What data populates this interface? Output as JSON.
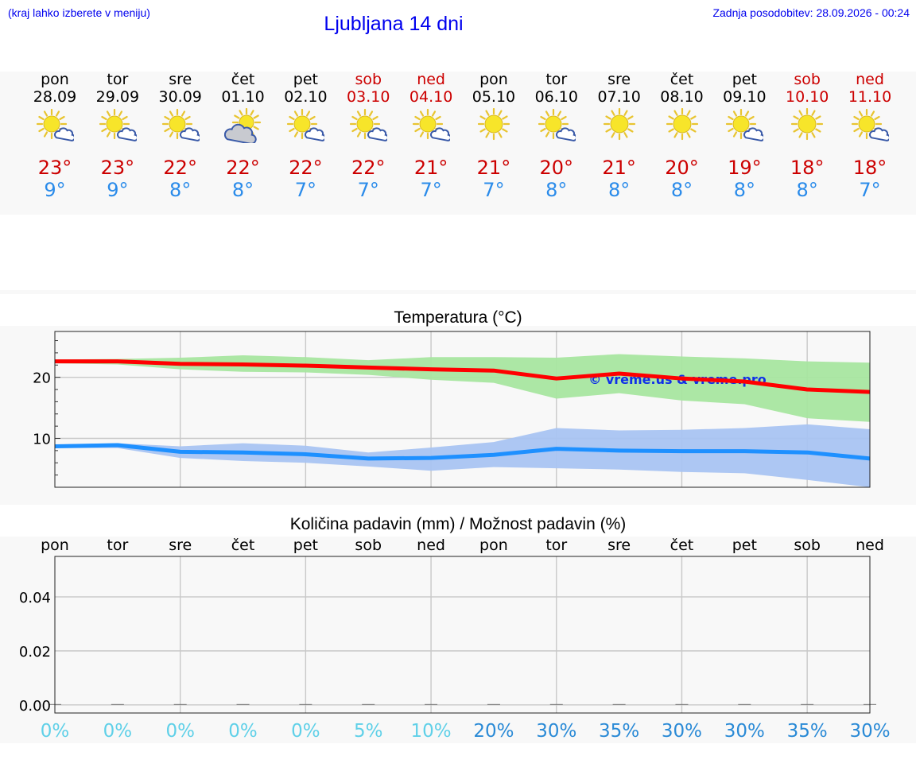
{
  "header": {
    "left_note": "(kraj lahko izberete v meniju)",
    "title": "Ljubljana 14 dni",
    "last_update": "Zadnja posodobitev: 28.09.2026 - 00:24"
  },
  "forecast": [
    {
      "day": "pon",
      "date": "28.09",
      "weekend": false,
      "icon": "sun-cloud-icon",
      "max": "23°",
      "min": "9°"
    },
    {
      "day": "tor",
      "date": "29.09",
      "weekend": false,
      "icon": "sun-cloud-icon",
      "max": "23°",
      "min": "9°"
    },
    {
      "day": "sre",
      "date": "30.09",
      "weekend": false,
      "icon": "sun-cloud-icon",
      "max": "22°",
      "min": "8°"
    },
    {
      "day": "čet",
      "date": "01.10",
      "weekend": false,
      "icon": "cloud-sun-icon",
      "max": "22°",
      "min": "8°"
    },
    {
      "day": "pet",
      "date": "02.10",
      "weekend": false,
      "icon": "sun-cloud-icon",
      "max": "22°",
      "min": "7°"
    },
    {
      "day": "sob",
      "date": "03.10",
      "weekend": true,
      "icon": "sun-cloud-icon",
      "max": "22°",
      "min": "7°"
    },
    {
      "day": "ned",
      "date": "04.10",
      "weekend": true,
      "icon": "sun-cloud-icon",
      "max": "21°",
      "min": "7°"
    },
    {
      "day": "pon",
      "date": "05.10",
      "weekend": false,
      "icon": "sun-icon",
      "max": "21°",
      "min": "7°"
    },
    {
      "day": "tor",
      "date": "06.10",
      "weekend": false,
      "icon": "sun-cloud-icon",
      "max": "20°",
      "min": "8°"
    },
    {
      "day": "sre",
      "date": "07.10",
      "weekend": false,
      "icon": "sun-icon",
      "max": "21°",
      "min": "8°"
    },
    {
      "day": "čet",
      "date": "08.10",
      "weekend": false,
      "icon": "sun-icon",
      "max": "20°",
      "min": "8°"
    },
    {
      "day": "pet",
      "date": "09.10",
      "weekend": false,
      "icon": "sun-cloud-icon",
      "max": "19°",
      "min": "8°"
    },
    {
      "day": "sob",
      "date": "10.10",
      "weekend": true,
      "icon": "sun-icon",
      "max": "18°",
      "min": "8°"
    },
    {
      "day": "ned",
      "date": "11.10",
      "weekend": true,
      "icon": "sun-cloud-icon",
      "max": "18°",
      "min": "7°"
    }
  ],
  "colors": {
    "max_temp": "#cc0000",
    "min_temp": "#2a8bea",
    "max_line": "#ff0000",
    "min_line": "#1e90ff",
    "max_band": "#a8e6a0",
    "min_band": "#a9c4f2",
    "weekend": "#cc0000",
    "title_blue": "#0000ee",
    "prob_low": "#5fd0e8",
    "prob_high": "#2a8ad6"
  },
  "chart_data": [
    {
      "type": "line",
      "title": "Temperatura (°C)",
      "watermark": "© vreme.us & vreme.pro",
      "x": [
        "28.09",
        "29.09",
        "30.09",
        "01.10",
        "02.10",
        "03.10",
        "04.10",
        "05.10",
        "06.10",
        "07.10",
        "08.10",
        "09.10",
        "10.10",
        "11.10"
      ],
      "ylim": [
        2,
        27.5
      ],
      "yticks": [
        10,
        20
      ],
      "grid": true,
      "series": [
        {
          "values": [
            22.6,
            22.6,
            22.2,
            22.1,
            21.9,
            21.6,
            21.3,
            21.1,
            19.8,
            20.6,
            19.8,
            19.3,
            18.0,
            17.6
          ],
          "band_low": [
            22.3,
            22.1,
            21.3,
            20.9,
            20.8,
            20.4,
            19.6,
            19.1,
            16.5,
            17.4,
            16.2,
            15.6,
            13.3,
            12.7
          ],
          "band_high": [
            22.9,
            23.0,
            23.2,
            23.6,
            23.3,
            22.8,
            23.3,
            23.3,
            23.2,
            23.8,
            23.4,
            23.1,
            22.6,
            22.4
          ]
        },
        {
          "values": [
            8.7,
            8.9,
            7.8,
            7.7,
            7.4,
            6.7,
            6.8,
            7.3,
            8.3,
            8.0,
            7.9,
            7.9,
            7.7,
            6.7
          ],
          "band_low": [
            8.4,
            8.4,
            6.8,
            6.3,
            6.0,
            5.4,
            4.7,
            5.3,
            5.1,
            4.9,
            4.5,
            4.3,
            3.2,
            2.0
          ],
          "band_high": [
            9.0,
            9.2,
            8.7,
            9.2,
            8.8,
            7.7,
            8.5,
            9.4,
            11.7,
            11.3,
            11.4,
            11.7,
            12.3,
            11.5
          ]
        }
      ]
    },
    {
      "type": "bar",
      "title": "Količina padavin (mm) / Možnost padavin (%)",
      "categories": [
        "pon",
        "tor",
        "sre",
        "čet",
        "pet",
        "sob",
        "ned",
        "pon",
        "tor",
        "sre",
        "čet",
        "pet",
        "sob",
        "ned"
      ],
      "values": [
        0,
        0,
        0,
        0,
        0,
        0,
        0,
        0,
        0,
        0,
        0,
        0,
        0,
        0
      ],
      "probabilities": [
        "0%",
        "0%",
        "0%",
        "0%",
        "0%",
        "5%",
        "10%",
        "20%",
        "30%",
        "35%",
        "30%",
        "30%",
        "35%",
        "30%"
      ],
      "ylim": [
        -0.003,
        0.055
      ],
      "yticks": [
        0.0,
        0.02,
        0.04
      ],
      "ytick_labels": [
        "0.00",
        "0.02",
        "0.04"
      ],
      "grid": true
    }
  ]
}
